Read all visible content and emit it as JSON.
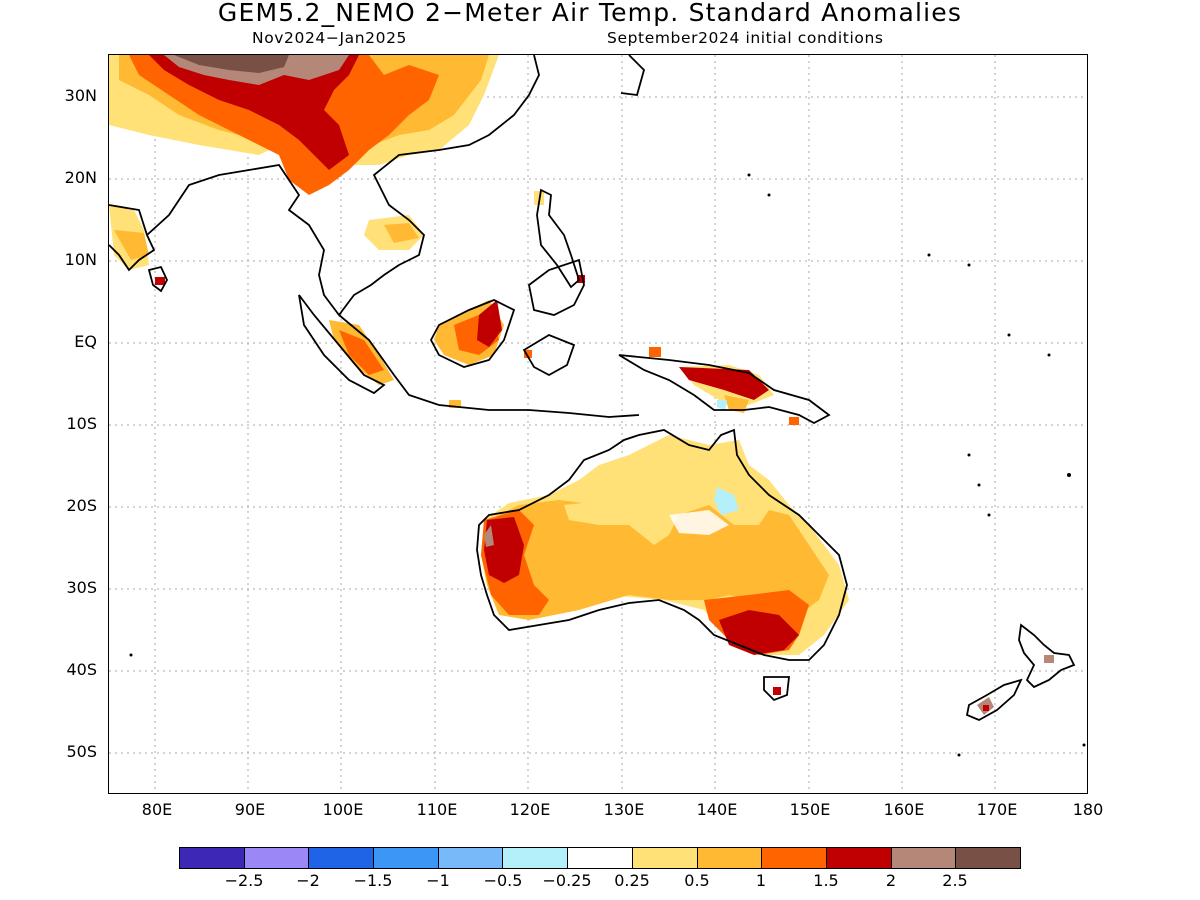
{
  "header": {
    "title": "GEM5.2_NEMO 2−Meter Air Temp. Standard Anomalies",
    "period": "Nov2024−Jan2025",
    "init": "September2024 initial conditions"
  },
  "map": {
    "region": "South-East Asia / Australia",
    "lat_labels": [
      "30N",
      "20N",
      "10N",
      "EQ",
      "10S",
      "20S",
      "30S",
      "40S",
      "50S"
    ],
    "lon_labels": [
      "80E",
      "90E",
      "100E",
      "110E",
      "120E",
      "130E",
      "140E",
      "150E",
      "160E",
      "170E",
      "180"
    ],
    "lon_range": [
      75,
      180
    ],
    "lat_range": [
      -55,
      35
    ],
    "grid": "dotted"
  },
  "colorbar": {
    "labels": [
      "−2.5",
      "−2",
      "−1.5",
      "−1",
      "−0.5",
      "−0.25",
      "0.25",
      "0.5",
      "1",
      "1.5",
      "2",
      "2.5"
    ],
    "colors": [
      "#3c28b4",
      "#9b87f5",
      "#1f64e6",
      "#3c96f5",
      "#78b9fa",
      "#b4f0fa",
      "#ffffff",
      "#ffe178",
      "#ffb932",
      "#ff6400",
      "#c00000",
      "#b48778",
      "#785046"
    ]
  },
  "chart_data": {
    "type": "heatmap",
    "title": "GEM5.2_NEMO 2−Meter Air Temp. Standard Anomalies",
    "subtitle": "Nov2024−Jan2025 / September2024 initial conditions",
    "x": [
      "80E",
      "90E",
      "100E",
      "110E",
      "120E",
      "130E",
      "140E",
      "150E",
      "160E",
      "170E",
      "180"
    ],
    "y": [
      "30N",
      "20N",
      "10N",
      "EQ",
      "10S",
      "20S",
      "30S",
      "40S",
      "50S"
    ],
    "levels": [
      -2.5,
      -2,
      -1.5,
      -1,
      -0.5,
      -0.25,
      0.25,
      0.5,
      1,
      1.5,
      2,
      2.5
    ],
    "regions": [
      {
        "name": "Tibetan Plateau",
        "anomaly": 2.5
      },
      {
        "name": "South China / Indochina north",
        "anomaly": 1.5
      },
      {
        "name": "Western Australia coast",
        "anomaly": 2
      },
      {
        "name": "South-east Australia",
        "anomaly": 2
      },
      {
        "name": "Central Australia",
        "anomaly": 0.5
      },
      {
        "name": "New Guinea north",
        "anomaly": 2
      },
      {
        "name": "Borneo",
        "anomaly": 1.5
      },
      {
        "name": "Sumatra",
        "anomaly": 1
      },
      {
        "name": "South Island NZ",
        "anomaly": 2.5
      },
      {
        "name": "North Australia interior spot",
        "anomaly": -0.5
      }
    ]
  }
}
